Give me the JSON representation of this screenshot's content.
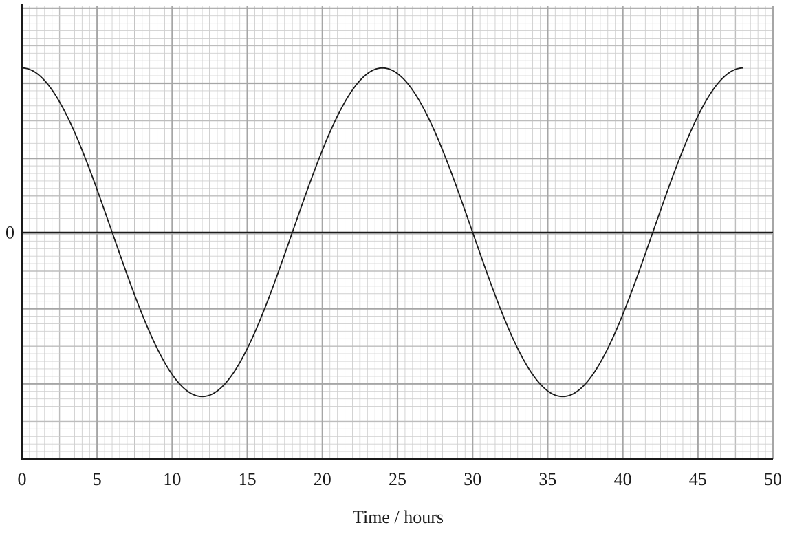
{
  "chart_data": {
    "type": "line",
    "title": "",
    "xlabel": "Time / hours",
    "ylabel": "",
    "xlim": [
      0,
      50
    ],
    "ylim": [
      -1.38,
      1.38
    ],
    "x_ticks": [
      0,
      5,
      10,
      15,
      20,
      25,
      30,
      35,
      40,
      45,
      50
    ],
    "x_tick_labels": [
      "0",
      "5",
      "10",
      "15",
      "20",
      "25",
      "30",
      "35",
      "40",
      "45",
      "50"
    ],
    "y_ticks": [
      0
    ],
    "y_tick_labels": [
      "0"
    ],
    "grid": true,
    "series": [
      {
        "name": "",
        "color": "#1a1a1a",
        "x": [
          0,
          6,
          12,
          18,
          24,
          30,
          36,
          42,
          48
        ],
        "y": [
          1,
          0,
          -1,
          0,
          1,
          0,
          -1,
          0,
          1
        ],
        "shape": "cosine",
        "period_hours": 24
      }
    ]
  }
}
